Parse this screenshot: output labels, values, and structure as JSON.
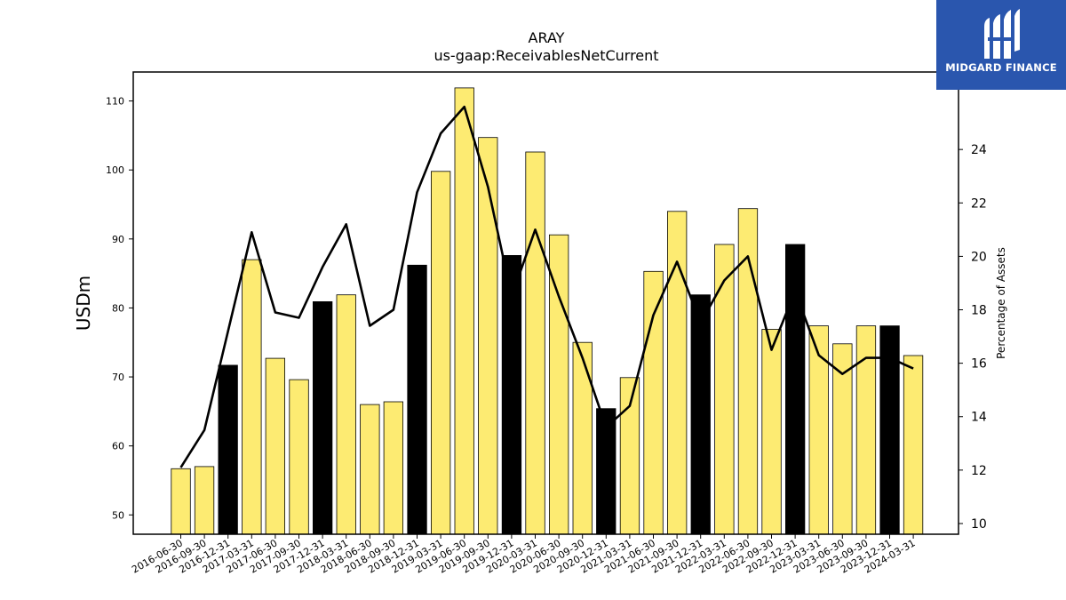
{
  "chart_data": {
    "type": "bar",
    "title": "ARAY",
    "subtitle": "us-gaap:ReceivablesNetCurrent",
    "ylabel": "USDm",
    "y2label": "Percentage of Assets",
    "ylim": [
      47.2,
      114.2
    ],
    "y2lim": [
      9.6,
      26.9
    ],
    "yticks": [
      50,
      60,
      70,
      80,
      90,
      100,
      110
    ],
    "y2ticks": [
      10,
      12,
      14,
      16,
      18,
      20,
      22,
      24
    ],
    "categories": [
      "2016-06-30",
      "2016-09-30",
      "2016-12-31",
      "2017-03-31",
      "2017-06-30",
      "2017-09-30",
      "2017-12-31",
      "2018-03-31",
      "2018-06-30",
      "2018-09-30",
      "2018-12-31",
      "2019-03-31",
      "2019-06-30",
      "2019-09-30",
      "2019-12-31",
      "2020-03-31",
      "2020-06-30",
      "2020-09-30",
      "2020-12-31",
      "2021-03-31",
      "2021-06-30",
      "2021-09-30",
      "2021-12-31",
      "2022-03-31",
      "2022-06-30",
      "2022-09-30",
      "2022-12-31",
      "2023-03-31",
      "2023-06-30",
      "2023-09-30",
      "2023-12-31",
      "2024-03-31"
    ],
    "series": [
      {
        "type": "bar",
        "values": [
          56.7,
          57.0,
          71.7,
          87.0,
          72.7,
          69.6,
          80.9,
          81.9,
          66.0,
          66.4,
          86.2,
          99.8,
          111.9,
          104.7,
          87.6,
          102.6,
          90.6,
          75.0,
          65.4,
          69.9,
          85.3,
          94.0,
          81.9,
          89.2,
          94.4,
          76.9,
          89.2,
          77.4,
          74.8,
          77.4,
          77.4,
          73.1
        ]
      },
      {
        "type": "line",
        "axis": "right",
        "values": [
          12.1,
          13.5,
          17.2,
          20.9,
          17.9,
          17.7,
          19.6,
          21.2,
          17.4,
          18.0,
          22.4,
          24.6,
          25.6,
          22.6,
          18.5,
          21.0,
          18.5,
          16.2,
          13.6,
          14.4,
          17.8,
          19.8,
          17.5,
          19.1,
          20.0,
          16.5,
          18.7,
          16.3,
          15.6,
          16.2,
          16.2,
          15.8
        ]
      }
    ],
    "colors": {
      "bar": "#fdeb72",
      "bar_highlight": "#000000",
      "line": "#000000"
    }
  },
  "logo": {
    "text": "MIDGARD FINANCE",
    "background": "#2a56ae"
  }
}
